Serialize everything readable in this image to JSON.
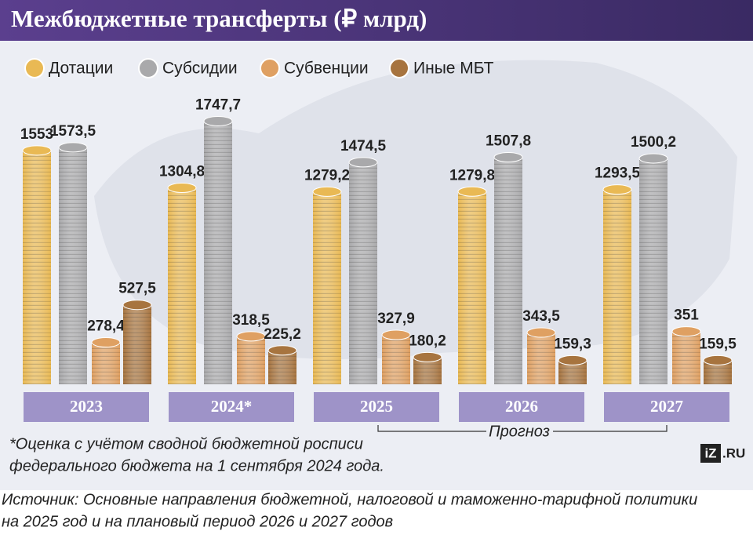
{
  "chart_data": {
    "type": "bar",
    "title": "Межбюджетные трансферты (₽ млрд)",
    "categories": [
      "2023",
      "2024*",
      "2025",
      "2026",
      "2027"
    ],
    "series": [
      {
        "name": "Дотации",
        "color": "#e9b954",
        "values": [
          1553,
          1304.8,
          1279.2,
          1279.8,
          1293.5
        ],
        "value_labels": [
          "1553",
          "1304,8",
          "1279,2",
          "1279,8",
          "1293,5"
        ]
      },
      {
        "name": "Субсидии",
        "color": "#a9a9ab",
        "values": [
          1573.5,
          1747.7,
          1474.5,
          1507.8,
          1500.2
        ],
        "value_labels": [
          "1573,5",
          "1747,7",
          "1474,5",
          "1507,8",
          "1500,2"
        ]
      },
      {
        "name": "Субвенции",
        "color": "#dfa062",
        "values": [
          278.4,
          318.5,
          327.9,
          343.5,
          351
        ],
        "value_labels": [
          "278,4",
          "318,5",
          "327,9",
          "343,5",
          "351"
        ]
      },
      {
        "name": "Иные МБТ",
        "color": "#a7743f",
        "values": [
          527.5,
          225.2,
          180.2,
          159.3,
          159.5
        ],
        "value_labels": [
          "527,5",
          "225,2",
          "180,2",
          "159,3",
          "159,5"
        ]
      }
    ],
    "forecast_label": "Прогноз",
    "footnote": [
      "*Оценка с учётом сводной бюджетной росписи",
      "федерального бюджета на 1 сентября 2024 года."
    ],
    "source": [
      "Источник: Основные направления бюджетной, налоговой и таможенно-тарифной политики",
      "на 2025 год и на плановый период 2026 и 2027 годов"
    ],
    "logo": [
      "iZ",
      ".RU"
    ]
  }
}
